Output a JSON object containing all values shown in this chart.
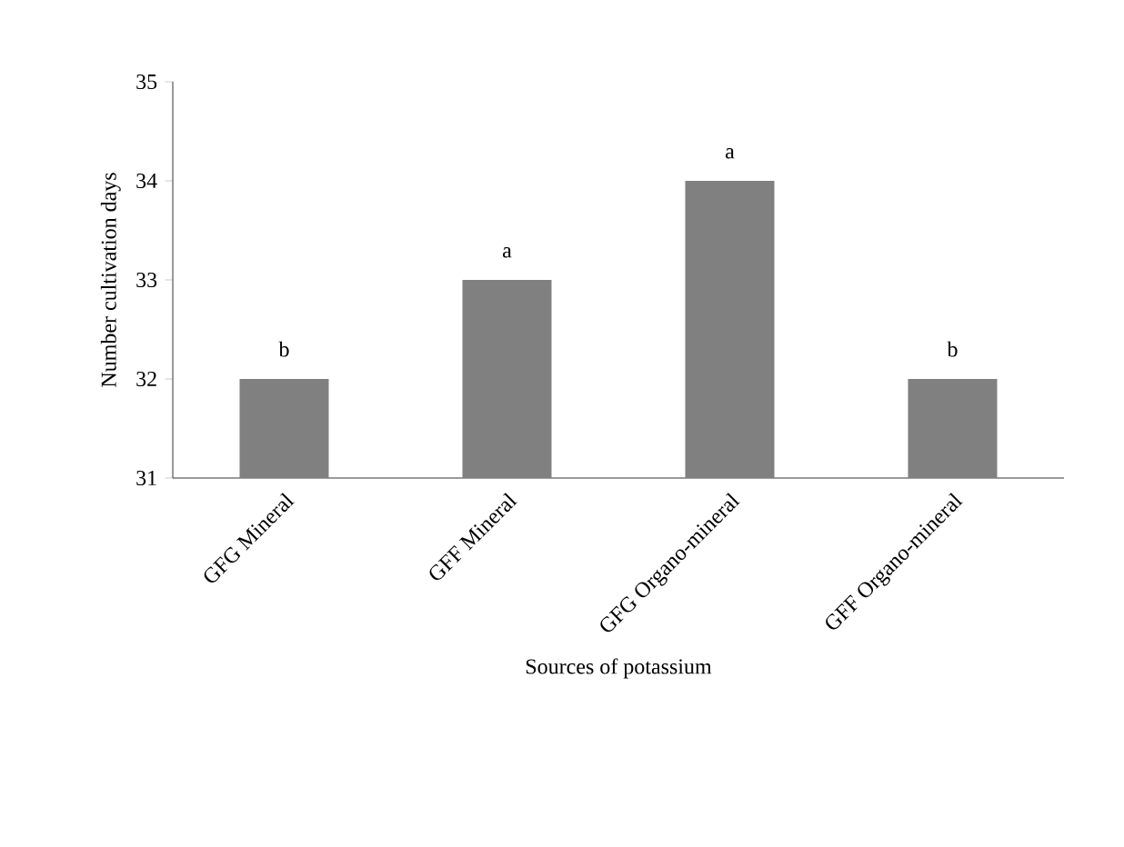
{
  "chart_data": {
    "type": "bar",
    "xlabel": "Sources of potassium",
    "ylabel": "Number cultivation days",
    "categories": [
      "GFG Mineral",
      "GFF Mineral",
      "GFG Organo-mineral",
      "GFF Organo-mineral"
    ],
    "values": [
      32,
      33,
      34,
      32
    ],
    "color": "#808080",
    "ylim": [
      31,
      35
    ],
    "yticks": [
      31,
      32,
      33,
      34,
      35
    ],
    "annotations": [
      {
        "text": "b",
        "x": "GFG Mineral",
        "y": 32
      },
      {
        "text": "a",
        "x": "GFF Mineral",
        "y": 33
      },
      {
        "text": "a",
        "x": "GFG Organo-mineral",
        "y": 34
      },
      {
        "text": "b",
        "x": "GFF Organo-mineral",
        "y": 32
      }
    ]
  }
}
